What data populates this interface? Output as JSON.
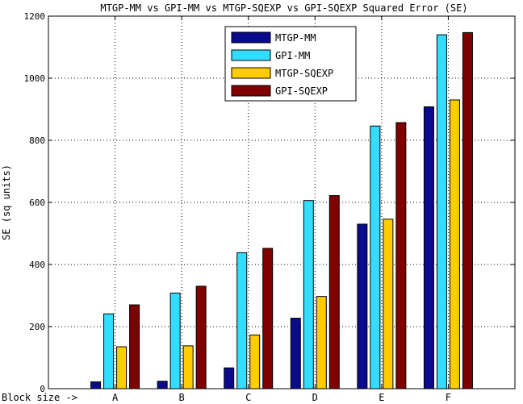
{
  "chart_data": {
    "type": "bar",
    "title": "MTGP-MM vs GPI-MM vs MTGP-SQEXP vs GPI-SQEXP Squared Error (SE)",
    "xlabel": "Block size ->",
    "ylabel": "SE (sq units)",
    "categories": [
      "A",
      "B",
      "C",
      "D",
      "E",
      "F"
    ],
    "ylim": [
      0,
      1200
    ],
    "yticks": [
      0,
      200,
      400,
      600,
      800,
      1000,
      1200
    ],
    "grid": true,
    "legend_position": "top-center",
    "series": [
      {
        "name": "MTGP-MM",
        "color": "#0a0a8c",
        "values": [
          22,
          24,
          67,
          227,
          530,
          908
        ]
      },
      {
        "name": "GPI-MM",
        "color": "#33ddff",
        "values": [
          241,
          308,
          438,
          606,
          846,
          1140
        ]
      },
      {
        "name": "MTGP-SQEXP",
        "color": "#ffcc00",
        "values": [
          135,
          138,
          173,
          297,
          546,
          930
        ]
      },
      {
        "name": "GPI-SQEXP",
        "color": "#800000",
        "values": [
          270,
          330,
          452,
          622,
          857,
          1147
        ]
      }
    ]
  }
}
